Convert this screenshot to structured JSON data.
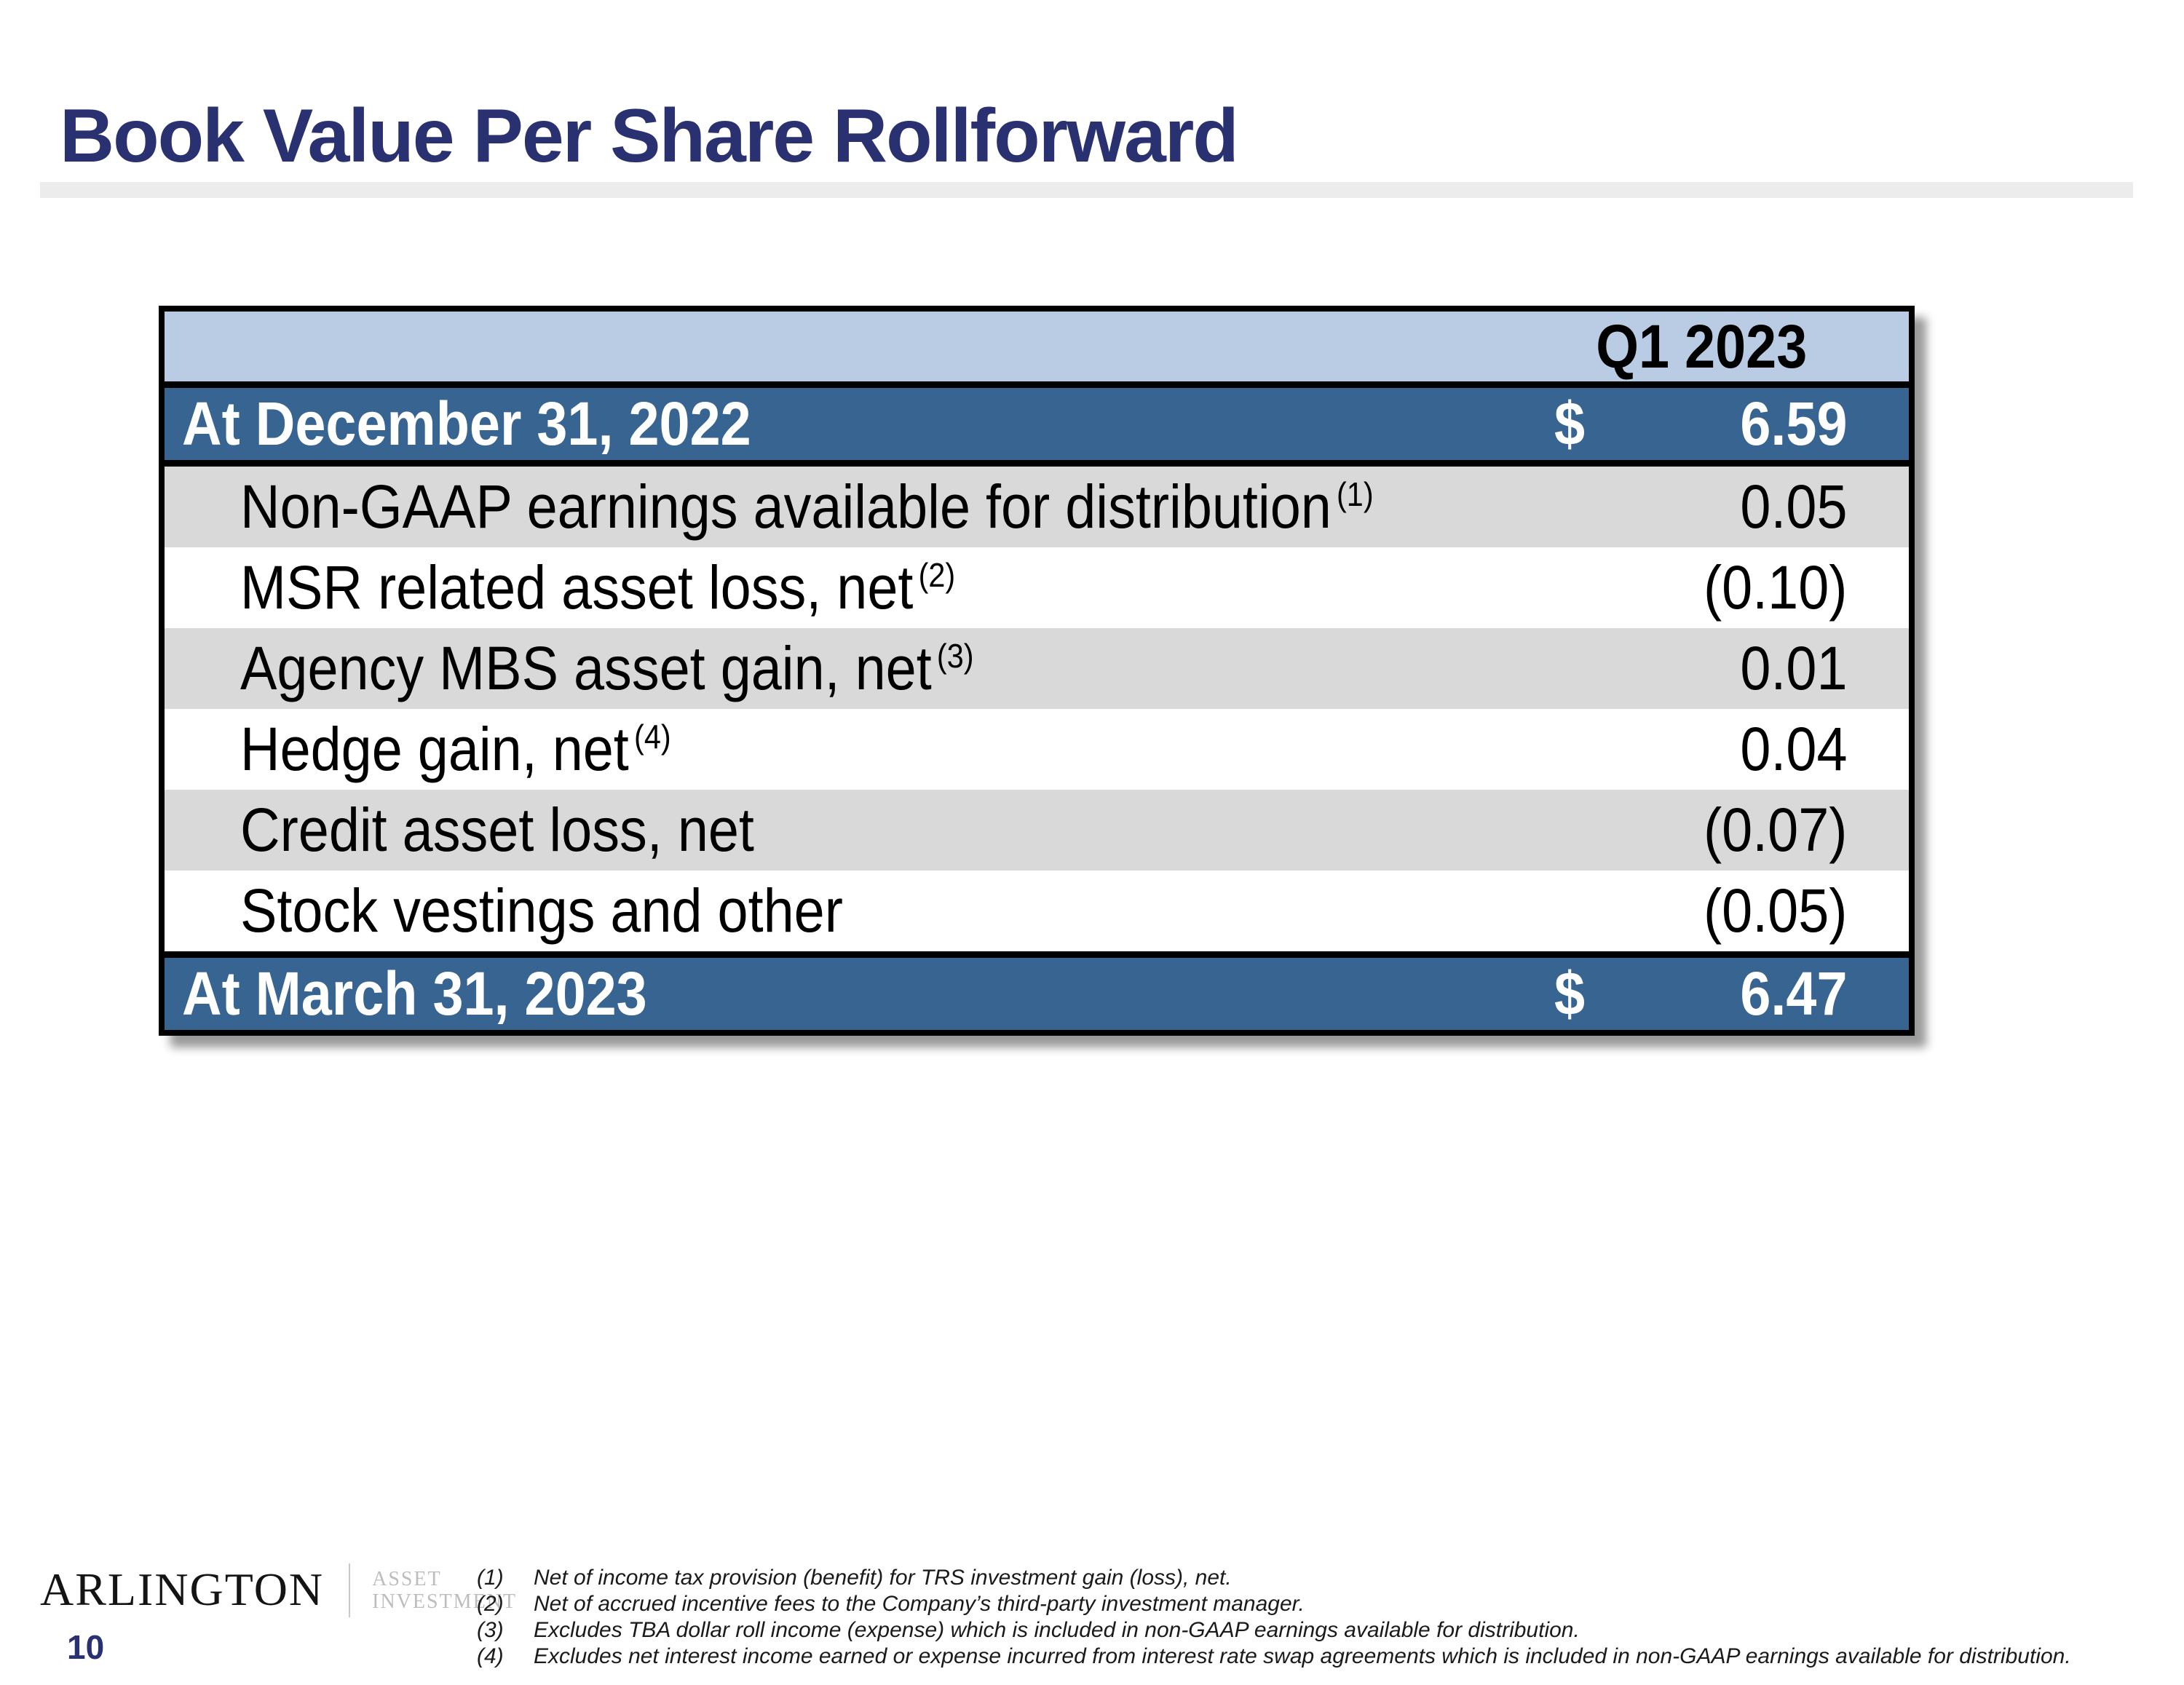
{
  "page": {
    "title": "Book Value Per Share Rollforward",
    "page_number": "10"
  },
  "logo": {
    "name": "ARLINGTON",
    "tagline_line1": "ASSET",
    "tagline_line2": "INVESTMENT"
  },
  "table": {
    "period_header": "Q1 2023",
    "opening": {
      "label": "At December 31, 2022",
      "currency": "$",
      "value": "6.59"
    },
    "rows": [
      {
        "label": "Non-GAAP earnings available for distribution",
        "sup": "(1)",
        "value": "0.05"
      },
      {
        "label": "MSR related asset loss, net",
        "sup": "(2)",
        "value": "(0.10)"
      },
      {
        "label": "Agency MBS asset gain, net",
        "sup": "(3)",
        "value": "0.01"
      },
      {
        "label": "Hedge gain, net",
        "sup": "(4)",
        "value": "0.04"
      },
      {
        "label": "Credit asset loss, net",
        "sup": "",
        "value": "(0.07)"
      },
      {
        "label": "Stock vestings and other",
        "sup": "",
        "value": "(0.05)"
      }
    ],
    "closing": {
      "label": "At March 31, 2023",
      "currency": "$",
      "value": "6.47"
    }
  },
  "footnotes": [
    {
      "num": "(1)",
      "text": "Net of income tax provision (benefit) for TRS investment gain (loss), net."
    },
    {
      "num": "(2)",
      "text": "Net of accrued incentive fees to the Company’s third-party investment manager."
    },
    {
      "num": "(3)",
      "text": "Excludes TBA dollar roll income (expense) which is included in non-GAAP earnings available for distribution."
    },
    {
      "num": "(4)",
      "text": "Excludes net interest income earned or expense incurred from interest rate swap agreements which is included in non-GAAP earnings available for distribution."
    }
  ],
  "colors": {
    "title_navy": "#2a3170",
    "table_header_blue": "#b9cce3",
    "table_total_blue": "#386491",
    "row_shade_gray": "#d9d9d9",
    "border_black": "#000000",
    "rule_gray": "#ececec"
  }
}
